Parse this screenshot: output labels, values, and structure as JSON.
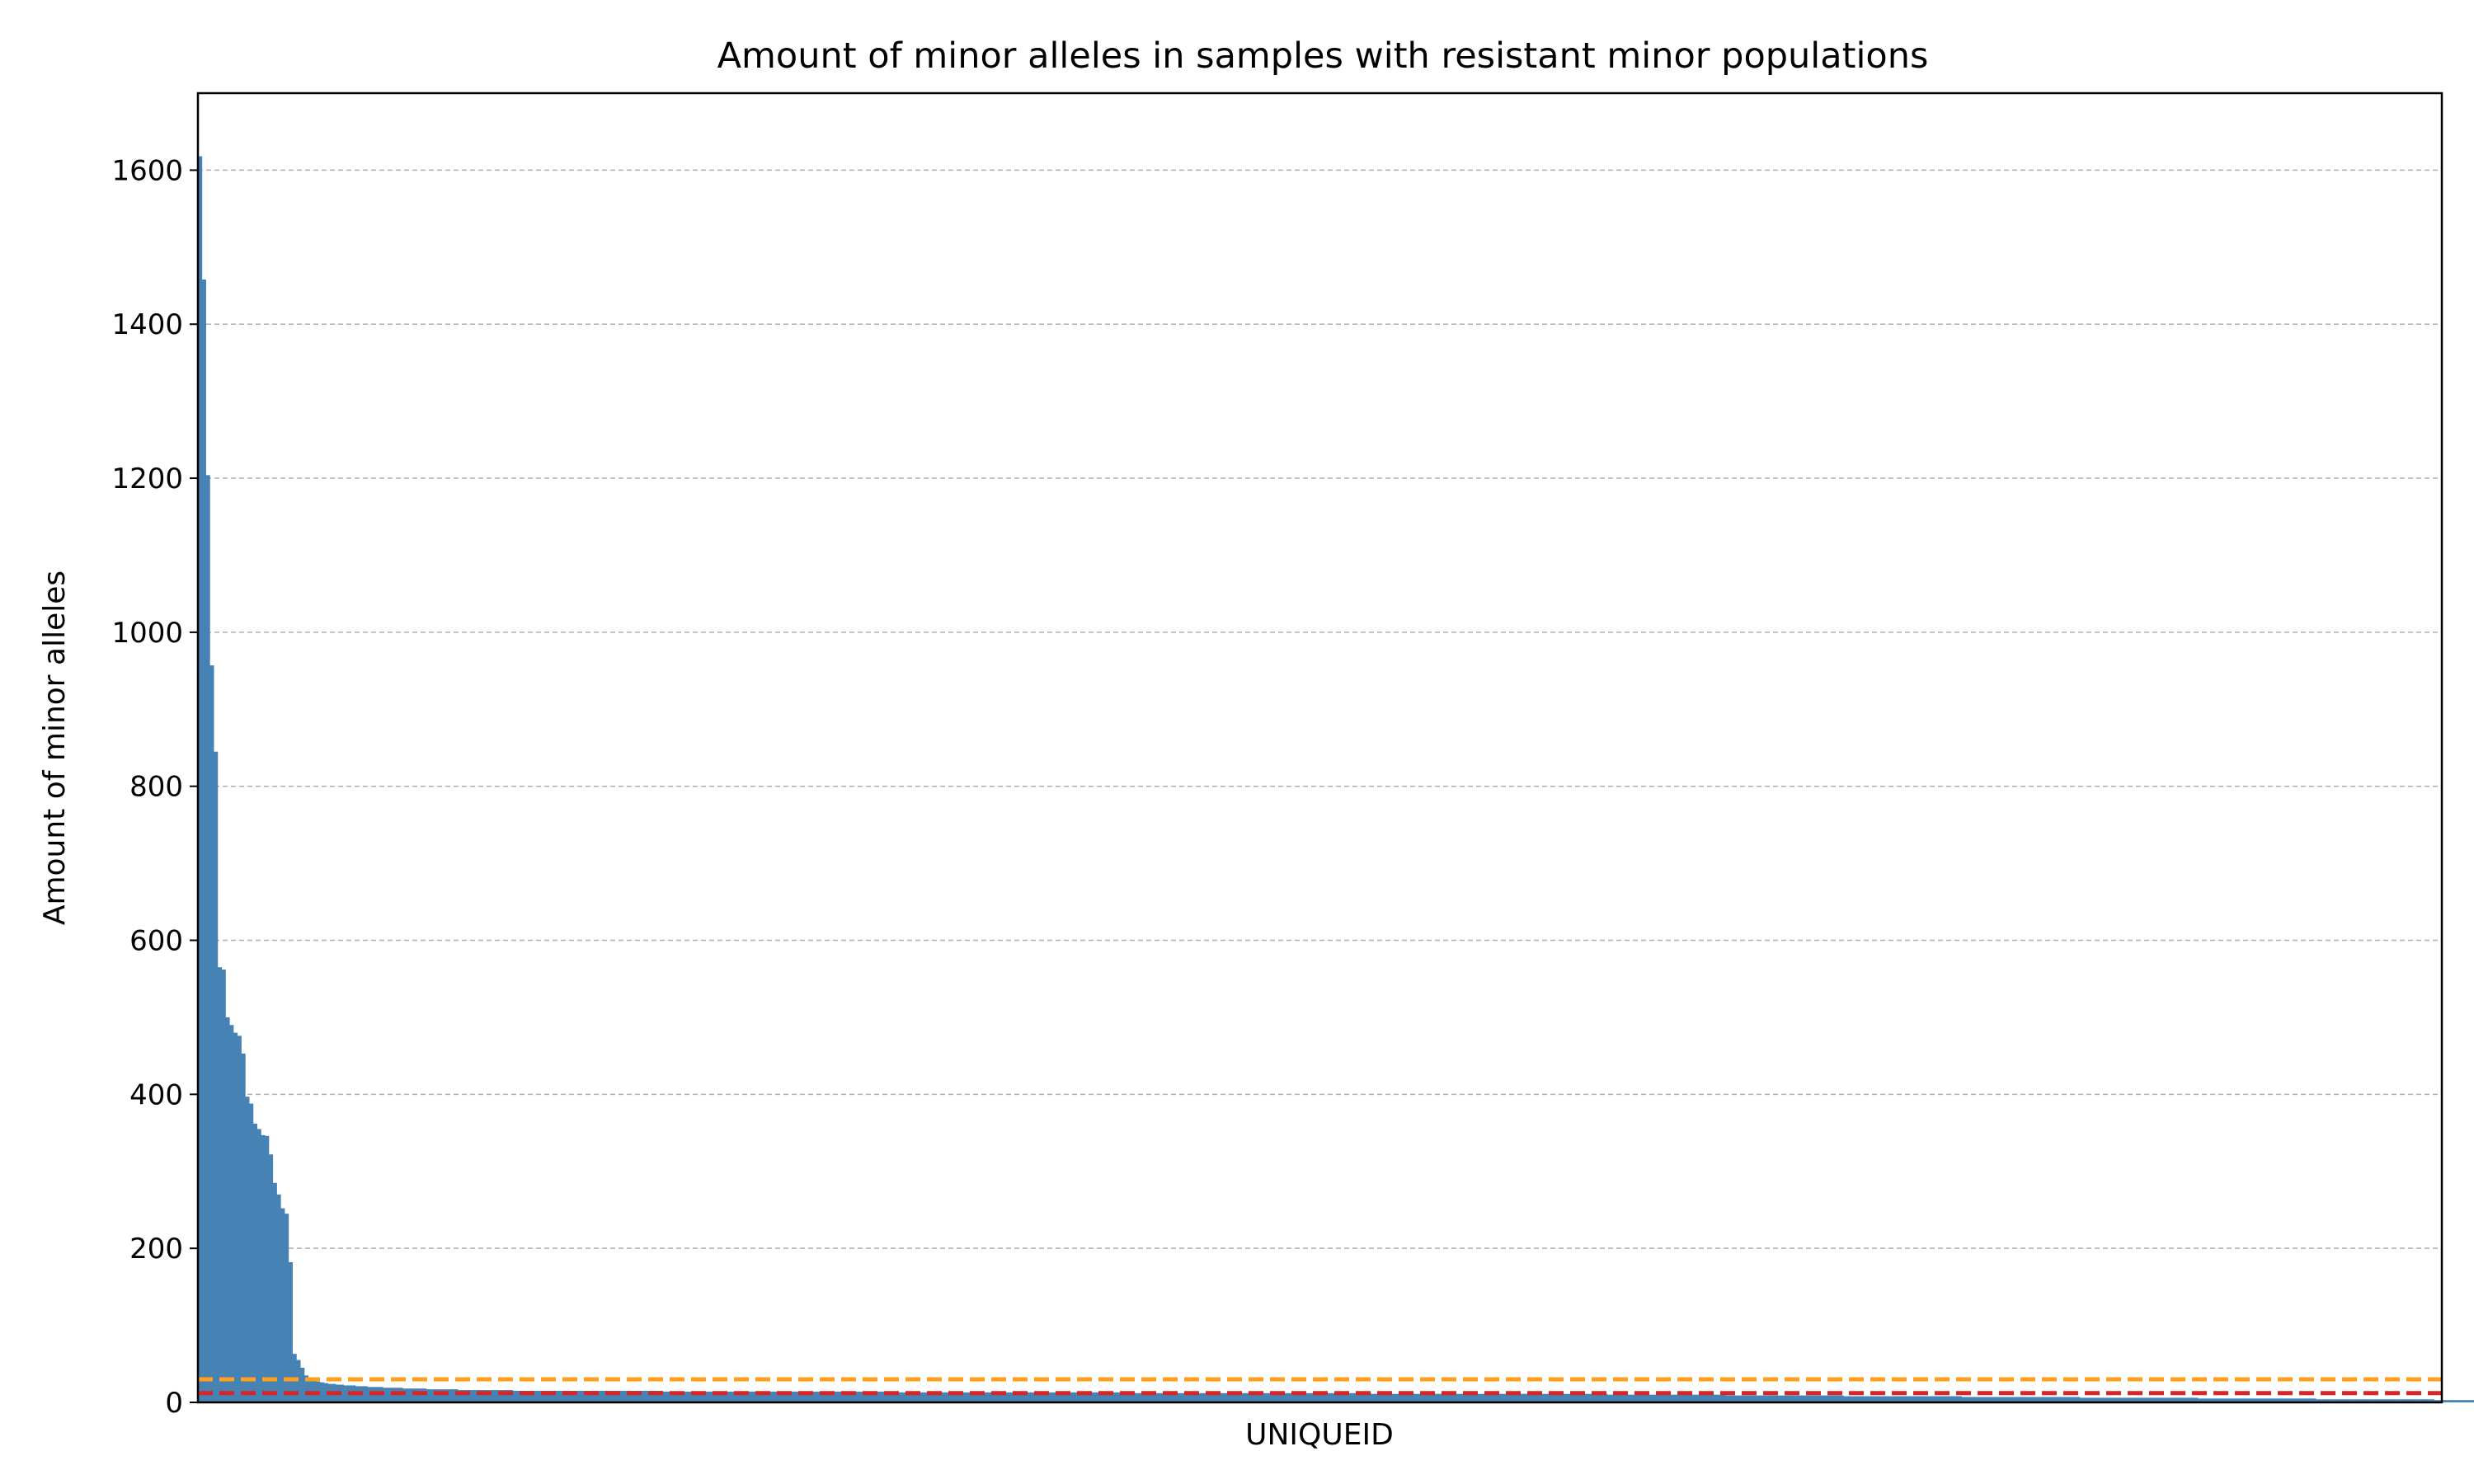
{
  "chart_data": {
    "type": "bar",
    "title": "Amount of minor alleles in samples with resistant minor populations",
    "xlabel": "UNIQUEID",
    "ylabel": "Amount of minor alleles",
    "xlim": [
      -0.5,
      569.5
    ],
    "ylim": [
      0,
      1700
    ],
    "yticks": [
      0,
      200,
      400,
      600,
      800,
      1000,
      1200,
      1400,
      1600
    ],
    "grid": "y-dashed",
    "legend": "none",
    "bar_color": "#4682b4",
    "values": [
      1618,
      1458,
      1204,
      957,
      845,
      565,
      562,
      500,
      490,
      480,
      476,
      453,
      397,
      388,
      362,
      355,
      347,
      346,
      322,
      285,
      270,
      252,
      245,
      182,
      63,
      55,
      45,
      35,
      30,
      28,
      27,
      26,
      25,
      24,
      24,
      23,
      23,
      22,
      22,
      22,
      21,
      21,
      21,
      20,
      20,
      20,
      20,
      19,
      19,
      19,
      19,
      19,
      18,
      18,
      18,
      18,
      18,
      18,
      17,
      17,
      17,
      17,
      17,
      17,
      17,
      17,
      16,
      16,
      16,
      16,
      16,
      16,
      16,
      16,
      16,
      16,
      16,
      16,
      16,
      16,
      15,
      15,
      15,
      15,
      15,
      15,
      15,
      15,
      15,
      15,
      15,
      15,
      15,
      15,
      15,
      15,
      15,
      15,
      15,
      15,
      15,
      15,
      15,
      15,
      15,
      15,
      15,
      15,
      15,
      15,
      15,
      15,
      15,
      15,
      15,
      15,
      15,
      15,
      14,
      14,
      14,
      14,
      14,
      14,
      14,
      14,
      14,
      14,
      14,
      14,
      14,
      14,
      14,
      14,
      14,
      14,
      14,
      14,
      14,
      14,
      14,
      14,
      14,
      14,
      14,
      14,
      14,
      14,
      14,
      14,
      14,
      14,
      14,
      14,
      14,
      14,
      14,
      14,
      14,
      14,
      14,
      14,
      14,
      14,
      14,
      14,
      14,
      14,
      14,
      14,
      14,
      14,
      14,
      14,
      14,
      14,
      14,
      14,
      13,
      13,
      13,
      13,
      13,
      13,
      13,
      13,
      13,
      13,
      13,
      13,
      13,
      13,
      13,
      13,
      13,
      13,
      13,
      13,
      13,
      13,
      13,
      13,
      13,
      13,
      13,
      13,
      13,
      13,
      13,
      13,
      13,
      13,
      13,
      13,
      13,
      13,
      13,
      13,
      13,
      13,
      13,
      13,
      13,
      13,
      13,
      13,
      13,
      13,
      13,
      13,
      13,
      13,
      13,
      13,
      13,
      13,
      13,
      13,
      12,
      12,
      12,
      12,
      12,
      12,
      12,
      12,
      12,
      12,
      12,
      12,
      12,
      12,
      12,
      12,
      12,
      12,
      12,
      12,
      12,
      12,
      12,
      12,
      12,
      12,
      12,
      12,
      12,
      12,
      12,
      12,
      12,
      12,
      12,
      12,
      12,
      12,
      12,
      12,
      12,
      12,
      12,
      12,
      12,
      12,
      12,
      12,
      12,
      12,
      12,
      12,
      12,
      12,
      12,
      12,
      12,
      12,
      12,
      12,
      11,
      11,
      11,
      11,
      11,
      11,
      11,
      11,
      11,
      11,
      11,
      11,
      11,
      11,
      11,
      11,
      11,
      11,
      11,
      11,
      11,
      11,
      11,
      11,
      11,
      11,
      11,
      11,
      11,
      11,
      11,
      11,
      11,
      11,
      11,
      11,
      11,
      11,
      11,
      11,
      11,
      11,
      11,
      11,
      11,
      11,
      11,
      11,
      11,
      11,
      11,
      11,
      11,
      11,
      11,
      11,
      11,
      11,
      11,
      11,
      10,
      10,
      10,
      10,
      10,
      10,
      10,
      10,
      10,
      10,
      10,
      10,
      10,
      10,
      10,
      10,
      10,
      10,
      10,
      10,
      10,
      10,
      10,
      10,
      10,
      10,
      10,
      10,
      10,
      10,
      9,
      9,
      9,
      9,
      9,
      9,
      9,
      9,
      9,
      9,
      9,
      9,
      9,
      9,
      9,
      9,
      9,
      9,
      9,
      9,
      9,
      9,
      9,
      9,
      9,
      9,
      9,
      9,
      9,
      9,
      8,
      8,
      8,
      8,
      8,
      8,
      8,
      8,
      8,
      8,
      8,
      8,
      8,
      8,
      8,
      8,
      8,
      8,
      8,
      8,
      8,
      8,
      8,
      8,
      8,
      8,
      8,
      8,
      8,
      8,
      7,
      7,
      7,
      7,
      7,
      7,
      7,
      7,
      7,
      7,
      7,
      7,
      7,
      7,
      7,
      7,
      7,
      7,
      7,
      7,
      7,
      7,
      7,
      7,
      7,
      7,
      7,
      7,
      7,
      7,
      6,
      6,
      6,
      6,
      6,
      6,
      6,
      6,
      6,
      6,
      6,
      6,
      6,
      6,
      6,
      6,
      6,
      6,
      6,
      6,
      6,
      6,
      6,
      6,
      6,
      6,
      6,
      6,
      6,
      6,
      5,
      5,
      5,
      5,
      5,
      5,
      5,
      5,
      5,
      5,
      5,
      5,
      5,
      5,
      5,
      5,
      5,
      5,
      5,
      5,
      5,
      5,
      5,
      5,
      5,
      5,
      5,
      5,
      5,
      5,
      4,
      4,
      4,
      4,
      4,
      4,
      4,
      4,
      4,
      4,
      4,
      4,
      4,
      4,
      4,
      4,
      4,
      4,
      4,
      4,
      4,
      4,
      4,
      4,
      4,
      4,
      4,
      4,
      4,
      4,
      3,
      3,
      3,
      3,
      3,
      3,
      3,
      3,
      3,
      3,
      3,
      3,
      3,
      3,
      3,
      3,
      3,
      3,
      3,
      3,
      3,
      3,
      3,
      3,
      3,
      3,
      3,
      3,
      3,
      3
    ],
    "reference_lines": [
      {
        "y": 30,
        "color": "#ff9f1c",
        "style": "dashed"
      },
      {
        "y": 12,
        "color": "#d62728",
        "style": "dashed"
      }
    ]
  }
}
